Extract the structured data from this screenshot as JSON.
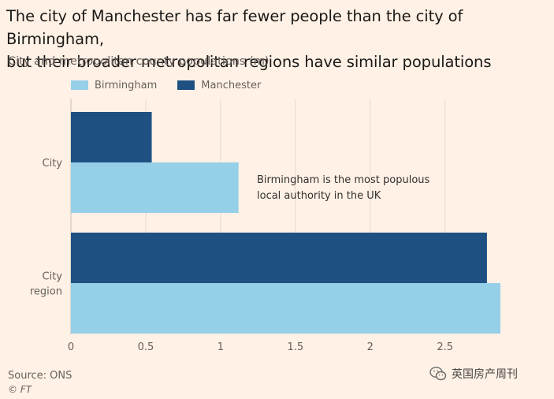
{
  "chart_data": {
    "type": "bar",
    "orientation": "horizontal",
    "title_lines": [
      "The city of Manchester has far fewer people than the city of Birmingham,",
      "but their broader metropolitan regions have similar populations"
    ],
    "subtitle": "City and metropolitan county populations (m)",
    "categories": [
      {
        "lines": [
          "City"
        ]
      },
      {
        "lines": [
          "City",
          "region"
        ]
      }
    ],
    "series": [
      {
        "name": "Birmingham",
        "color": "#96CFE8",
        "values": [
          1.12,
          2.87
        ]
      },
      {
        "name": "Manchester",
        "color": "#1F5082",
        "values": [
          0.54,
          2.78
        ]
      }
    ],
    "xlim": [
      0,
      2.87
    ],
    "xticks": [
      0,
      0.5,
      1,
      1.5,
      2,
      2.5
    ],
    "xtick_labels": [
      "0",
      "0.5",
      "1",
      "1.5",
      "2",
      "2.5"
    ],
    "grid": true,
    "annotation": {
      "lines": [
        "Birmingham is the most populous",
        "local authority in the UK"
      ],
      "category_index": 0
    },
    "source": "Source: ONS",
    "credit": "© FT"
  },
  "watermark": {
    "text": "英国房产周刊",
    "icon": "wechat-icon"
  }
}
